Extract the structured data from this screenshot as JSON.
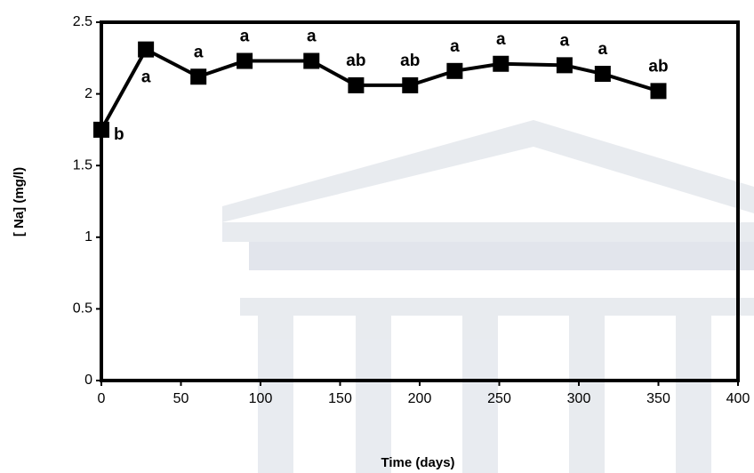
{
  "chart_data": {
    "type": "line",
    "x_label": "Time (days)",
    "y_label": "[ Na] (mg/l)",
    "x": [
      0,
      28,
      61,
      90,
      132,
      160,
      194,
      222,
      251,
      291,
      315,
      350
    ],
    "series": [
      {
        "name": "Na",
        "color": "#000000",
        "values": [
          1.75,
          2.31,
          2.12,
          2.23,
          2.23,
          2.06,
          2.06,
          2.16,
          2.21,
          2.2,
          2.14,
          2.02
        ]
      }
    ],
    "annotations": [
      "b",
      "a",
      "a",
      "a",
      "a",
      "ab",
      "ab",
      "a",
      "a",
      "a",
      "a",
      "ab"
    ],
    "xlim": [
      0,
      400
    ],
    "xticks": [
      0,
      50,
      100,
      150,
      200,
      250,
      300,
      350,
      400
    ],
    "ylim": [
      0,
      2.5
    ],
    "yticks": [
      0,
      0.5,
      1,
      1.5,
      2,
      2.5
    ]
  }
}
